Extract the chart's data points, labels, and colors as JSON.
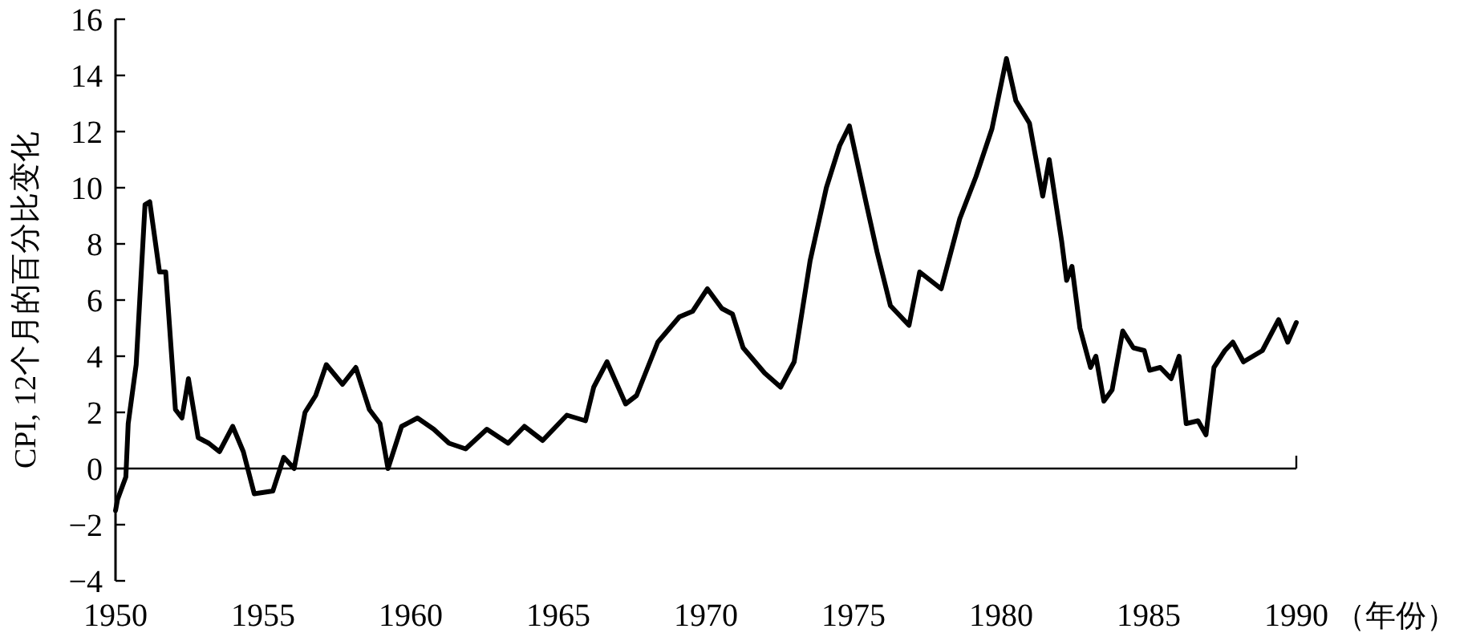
{
  "chart_data": {
    "type": "line",
    "ylabel": "CPI, 12个月的百分比变化",
    "xlabel": "（年份）",
    "xlim": [
      1950,
      1990
    ],
    "ylim": [
      -4,
      16
    ],
    "xticks": [
      1950,
      1955,
      1960,
      1965,
      1970,
      1975,
      1980,
      1985,
      1990
    ],
    "yticks": [
      {
        "value": -4,
        "label": "−4"
      },
      {
        "value": -2,
        "label": "−2"
      },
      0,
      2,
      4,
      6,
      8,
      10,
      12,
      14,
      16
    ],
    "marker": "none",
    "line_style": "solid",
    "ref_lines": [
      {
        "axis": "y",
        "value": 0,
        "label": null,
        "color": "#000000",
        "line_style": "solid"
      }
    ],
    "series": [
      {
        "color": "#000000",
        "x": [
          1950.0,
          1950.07,
          1950.35,
          1950.43,
          1950.7,
          1951.0,
          1951.16,
          1951.49,
          1951.7,
          1952.03,
          1952.25,
          1952.47,
          1952.8,
          1953.16,
          1953.52,
          1953.97,
          1954.33,
          1954.7,
          1955.33,
          1955.7,
          1956.05,
          1956.42,
          1956.78,
          1957.14,
          1957.69,
          1958.14,
          1958.6,
          1958.96,
          1959.23,
          1959.69,
          1960.23,
          1960.78,
          1961.3,
          1961.86,
          1962.58,
          1963.3,
          1963.85,
          1964.47,
          1965.29,
          1965.92,
          1966.2,
          1966.65,
          1967.28,
          1967.65,
          1968.37,
          1969.1,
          1969.55,
          1970.05,
          1970.54,
          1970.9,
          1971.26,
          1971.99,
          1972.53,
          1972.99,
          1973.53,
          1974.08,
          1974.53,
          1974.86,
          1975.44,
          1975.8,
          1976.25,
          1976.88,
          1977.24,
          1977.97,
          1978.6,
          1979.15,
          1979.69,
          1980.18,
          1980.5,
          1980.96,
          1981.41,
          1981.63,
          1982.05,
          1982.22,
          1982.4,
          1982.67,
          1983.03,
          1983.21,
          1983.48,
          1983.76,
          1984.12,
          1984.48,
          1984.85,
          1985.03,
          1985.39,
          1985.76,
          1986.03,
          1986.27,
          1986.67,
          1986.94,
          1987.21,
          1987.58,
          1987.85,
          1988.21,
          1988.85,
          1989.4,
          1989.71,
          1990.0
        ],
        "values": [
          -1.5,
          -1.1,
          -0.3,
          1.6,
          3.7,
          9.4,
          9.5,
          7.0,
          7.0,
          2.1,
          1.8,
          3.2,
          1.1,
          0.9,
          0.6,
          1.5,
          0.6,
          -0.9,
          -0.8,
          0.4,
          0.0,
          2.0,
          2.6,
          3.7,
          3.0,
          3.6,
          2.1,
          1.6,
          0.0,
          1.5,
          1.8,
          1.4,
          0.9,
          0.7,
          1.4,
          0.9,
          1.5,
          1.0,
          1.9,
          1.7,
          2.9,
          3.8,
          2.3,
          2.6,
          4.5,
          5.4,
          5.6,
          6.4,
          5.7,
          5.5,
          4.3,
          3.4,
          2.9,
          3.8,
          7.4,
          10.0,
          11.5,
          12.2,
          9.4,
          7.7,
          5.8,
          5.1,
          7.0,
          6.4,
          8.9,
          10.4,
          12.1,
          14.6,
          13.1,
          12.3,
          9.7,
          11.0,
          8.1,
          6.7,
          7.2,
          5.0,
          3.6,
          4.0,
          2.4,
          2.8,
          4.9,
          4.3,
          4.2,
          3.5,
          3.6,
          3.2,
          4.0,
          1.6,
          1.7,
          1.2,
          3.6,
          4.2,
          4.5,
          3.8,
          4.2,
          5.3,
          4.5,
          5.2
        ]
      }
    ]
  }
}
